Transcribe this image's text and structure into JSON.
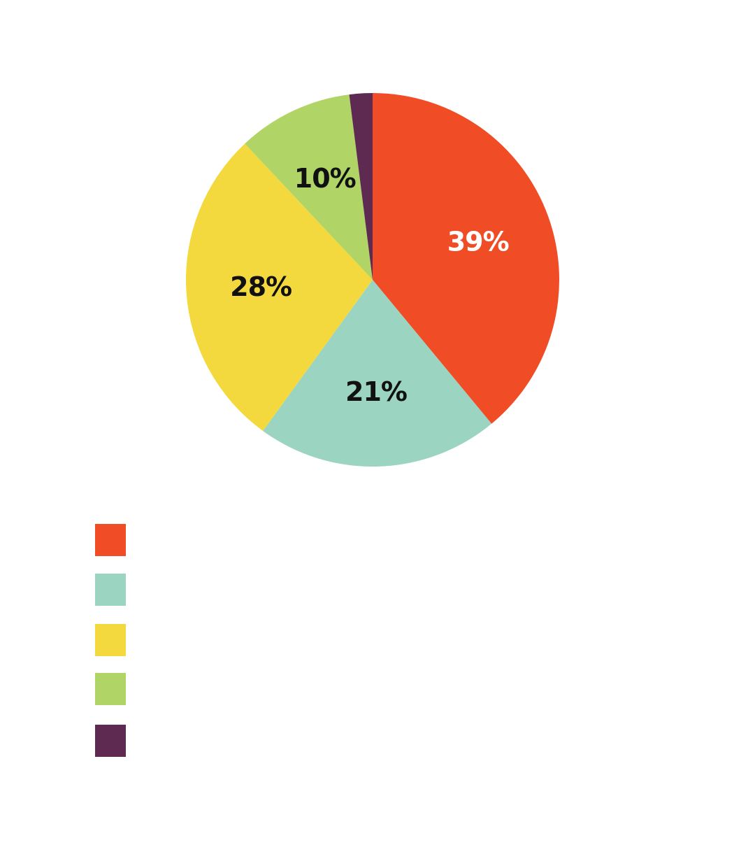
{
  "chart_data": {
    "type": "pie",
    "title": "",
    "slices": [
      {
        "label": "",
        "value": 39,
        "display": "39%",
        "color": "#f04c25",
        "label_color": "#ffffff"
      },
      {
        "label": "",
        "value": 21,
        "display": "21%",
        "color": "#9bd4c0",
        "label_color": "#111111"
      },
      {
        "label": "",
        "value": 28,
        "display": "28%",
        "color": "#f3d93e",
        "label_color": "#111111"
      },
      {
        "label": "",
        "value": 10,
        "display": "10%",
        "color": "#b0d566",
        "label_color": "#111111"
      },
      {
        "label": "",
        "value": 2,
        "display": "",
        "color": "#5f2a52",
        "label_color": "#ffffff"
      }
    ],
    "legend": {
      "placement": "bottom-left",
      "entries": [
        {
          "color": "#f04c25",
          "label": ""
        },
        {
          "color": "#9bd4c0",
          "label": ""
        },
        {
          "color": "#f3d93e",
          "label": ""
        },
        {
          "color": "#b0d566",
          "label": ""
        },
        {
          "color": "#5f2a52",
          "label": ""
        }
      ]
    }
  }
}
